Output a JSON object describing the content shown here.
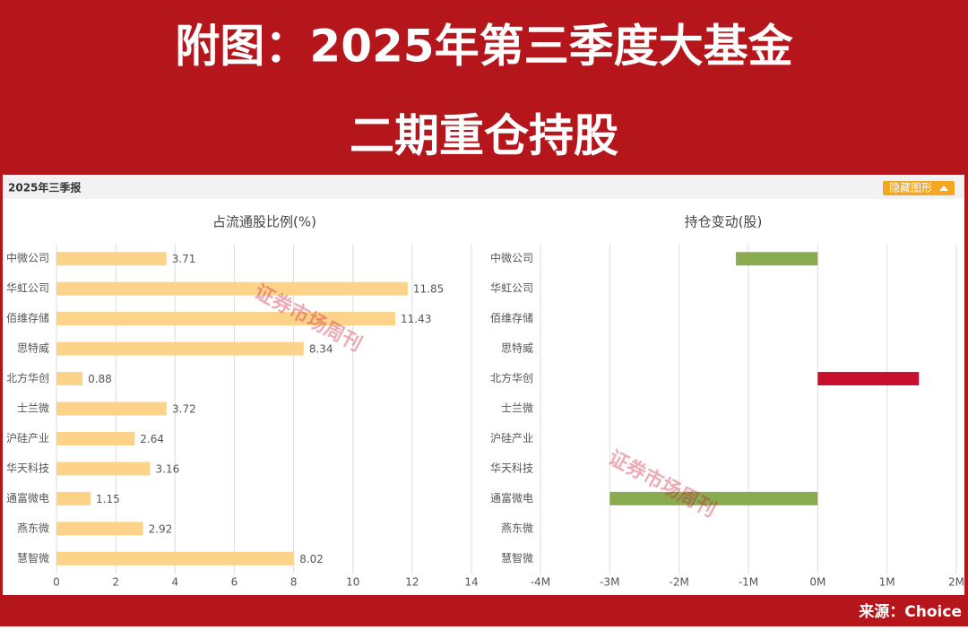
{
  "header": {
    "line1": "附图：2025年第三季度大基金",
    "line2": "二期重仓持股"
  },
  "report_label": "2025年三季报",
  "toggle_button": "隐藏图形",
  "watermark": "证券市场周刊",
  "source": "来源：Choice",
  "chart_data": [
    {
      "type": "bar",
      "orientation": "horizontal",
      "title": "占流通股比例(%)",
      "categories": [
        "中微公司",
        "华虹公司",
        "佰维存储",
        "思特威",
        "北方华创",
        "士兰微",
        "沪硅产业",
        "华天科技",
        "通富微电",
        "燕东微",
        "慧智微"
      ],
      "values": [
        3.71,
        11.85,
        11.43,
        8.34,
        0.88,
        3.72,
        2.64,
        3.16,
        1.15,
        2.92,
        8.02
      ],
      "color": "#fdd38a",
      "data_labels": true,
      "xlim": [
        0,
        14
      ],
      "xticks": [
        0,
        2,
        4,
        6,
        8,
        10,
        12,
        14
      ],
      "grid": true
    },
    {
      "type": "bar",
      "orientation": "horizontal",
      "title": "持仓变动(股)",
      "categories": [
        "中微公司",
        "华虹公司",
        "佰维存储",
        "思特威",
        "北方华创",
        "士兰微",
        "沪硅产业",
        "华天科技",
        "通富微电",
        "燕东微",
        "慧智微"
      ],
      "values": [
        -1180000,
        null,
        null,
        null,
        1460000,
        null,
        null,
        null,
        -3000000,
        null,
        null
      ],
      "positive_color": "#c8102e",
      "negative_color": "#8aab4f",
      "data_labels": false,
      "xlim": [
        -4000000,
        2000000
      ],
      "xticks": [
        {
          "value": -4000000,
          "label": "-4M"
        },
        {
          "value": -3000000,
          "label": "-3M"
        },
        {
          "value": -2000000,
          "label": "-2M"
        },
        {
          "value": -1000000,
          "label": "-1M"
        },
        {
          "value": 0,
          "label": "0M"
        },
        {
          "value": 1000000,
          "label": "1M"
        },
        {
          "value": 2000000,
          "label": "2M"
        }
      ],
      "grid": true
    }
  ]
}
